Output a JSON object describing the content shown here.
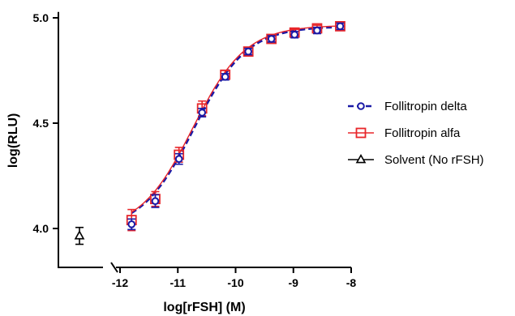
{
  "chart_data": {
    "type": "line",
    "title": "",
    "xlabel": "log[rFSH] (M)",
    "ylabel": "log(RLU)",
    "xlim": [
      -12.1,
      -7.95
    ],
    "ylim": [
      3.84,
      5.02
    ],
    "x_ticks": [
      -12,
      -11,
      -10,
      -9,
      -8
    ],
    "x_tick_labels": [
      "-12",
      "-11",
      "-10",
      "-9",
      "-8"
    ],
    "y_ticks": [
      4.0,
      4.5,
      5.0
    ],
    "y_tick_labels": [
      "4.0",
      "4.5",
      "5.0"
    ],
    "axis_break": true,
    "grid": false,
    "legend_position": "right",
    "series": [
      {
        "name": "Follitropin delta",
        "color": "#1a1aa6",
        "marker": "circle",
        "line_style": "dashed",
        "x": [
          -11.8,
          -11.39,
          -10.98,
          -10.58,
          -10.18,
          -9.78,
          -9.38,
          -8.98,
          -8.59,
          -8.19
        ],
        "y": [
          4.02,
          4.13,
          4.33,
          4.55,
          4.72,
          4.84,
          4.9,
          4.92,
          4.94,
          4.96
        ],
        "err": [
          0.025,
          0.03,
          0.025,
          0.02,
          0.015,
          0.015,
          0.015,
          0.015,
          0.015,
          0.015
        ],
        "fit": {
          "bottom": 3.99,
          "top": 4.96,
          "logec50": -10.72,
          "hill": 0.95
        }
      },
      {
        "name": "Follitropin alfa",
        "color": "#e8262a",
        "marker": "square",
        "line_style": "solid",
        "x": [
          -11.8,
          -11.39,
          -10.98,
          -10.58,
          -10.18,
          -9.78,
          -9.38,
          -8.98,
          -8.59,
          -8.19
        ],
        "y": [
          4.04,
          4.14,
          4.35,
          4.57,
          4.73,
          4.84,
          4.9,
          4.93,
          4.95,
          4.96
        ],
        "err": [
          0.05,
          0.035,
          0.035,
          0.035,
          0.02,
          0.02,
          0.015,
          0.015,
          0.015,
          0.015
        ],
        "fit": {
          "bottom": 3.99,
          "top": 4.965,
          "logec50": -10.74,
          "hill": 0.95
        }
      },
      {
        "name": "Solvent (No rFSH)",
        "color": "#000000",
        "marker": "triangle",
        "line_style": "solid",
        "x_label_position": "left-of-break",
        "y": [
          3.965
        ],
        "err": [
          0.04
        ]
      }
    ]
  }
}
